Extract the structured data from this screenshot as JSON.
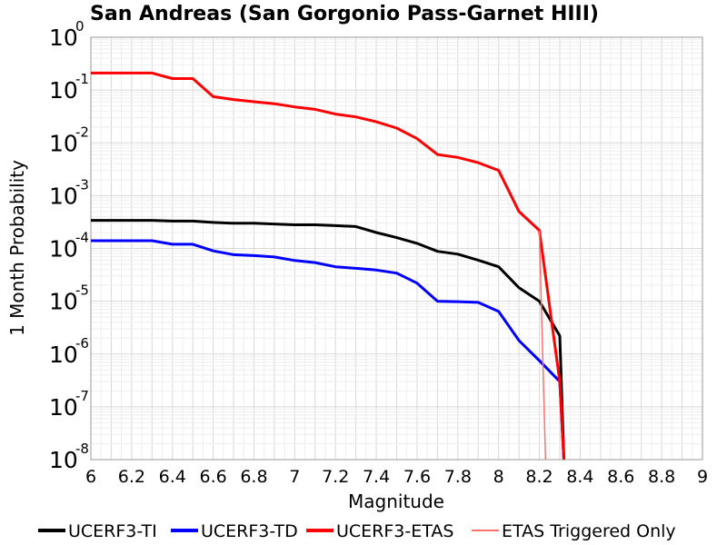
{
  "chart_data": {
    "type": "line",
    "title": "San Andreas (San Gorgonio Pass-Garnet HIII)",
    "xlabel": "Magnitude",
    "ylabel": "1 Month Probability",
    "xlim": [
      6,
      9
    ],
    "ylim": [
      1e-08,
      1
    ],
    "yscale": "log",
    "grid": true,
    "legend_position": "bottom",
    "x_ticks": [
      "6",
      "6.2",
      "6.4",
      "6.6",
      "6.8",
      "7",
      "7.2",
      "7.4",
      "7.6",
      "7.8",
      "8",
      "8.2",
      "8.4",
      "8.6",
      "8.8",
      "9"
    ],
    "y_ticks": [
      {
        "base": "10",
        "exp": "0"
      },
      {
        "base": "10",
        "exp": "-1"
      },
      {
        "base": "10",
        "exp": "-2"
      },
      {
        "base": "10",
        "exp": "-3"
      },
      {
        "base": "10",
        "exp": "-4"
      },
      {
        "base": "10",
        "exp": "-5"
      },
      {
        "base": "10",
        "exp": "-6"
      },
      {
        "base": "10",
        "exp": "-7"
      },
      {
        "base": "10",
        "exp": "-8"
      }
    ],
    "series": [
      {
        "name": "UCERF3-TI",
        "color": "#000000",
        "line_width": 3,
        "points": [
          [
            6.0,
            0.00034
          ],
          [
            6.1,
            0.00034
          ],
          [
            6.2,
            0.00034
          ],
          [
            6.3,
            0.00034
          ],
          [
            6.4,
            0.00033
          ],
          [
            6.5,
            0.00033
          ],
          [
            6.6,
            0.00031
          ],
          [
            6.7,
            0.0003
          ],
          [
            6.8,
            0.0003
          ],
          [
            6.9,
            0.00029
          ],
          [
            7.0,
            0.00028
          ],
          [
            7.1,
            0.00028
          ],
          [
            7.2,
            0.00027
          ],
          [
            7.3,
            0.00026
          ],
          [
            7.4,
            0.0002
          ],
          [
            7.5,
            0.00016
          ],
          [
            7.6,
            0.000125
          ],
          [
            7.7,
            8.8e-05
          ],
          [
            7.8,
            7.8e-05
          ],
          [
            7.9,
            6e-05
          ],
          [
            8.0,
            4.5e-05
          ],
          [
            8.1,
            1.8e-05
          ],
          [
            8.2,
            1e-05
          ],
          [
            8.3,
            2.2e-06
          ],
          [
            8.32,
            1e-08
          ]
        ]
      },
      {
        "name": "UCERF3-TD",
        "color": "#0000ff",
        "line_width": 3,
        "points": [
          [
            6.0,
            0.00014
          ],
          [
            6.1,
            0.00014
          ],
          [
            6.2,
            0.00014
          ],
          [
            6.3,
            0.00014
          ],
          [
            6.4,
            0.00012
          ],
          [
            6.5,
            0.00012
          ],
          [
            6.6,
            9e-05
          ],
          [
            6.7,
            7.6e-05
          ],
          [
            6.8,
            7.3e-05
          ],
          [
            6.9,
            6.9e-05
          ],
          [
            7.0,
            5.9e-05
          ],
          [
            7.1,
            5.4e-05
          ],
          [
            7.2,
            4.5e-05
          ],
          [
            7.3,
            4.2e-05
          ],
          [
            7.4,
            3.9e-05
          ],
          [
            7.5,
            3.4e-05
          ],
          [
            7.6,
            2.2e-05
          ],
          [
            7.7,
            1e-05
          ],
          [
            7.8,
            9.8e-06
          ],
          [
            7.9,
            9.5e-06
          ],
          [
            8.0,
            6.4e-06
          ],
          [
            8.1,
            1.8e-06
          ],
          [
            8.2,
            7.5e-07
          ],
          [
            8.3,
            3e-07
          ],
          [
            8.32,
            1e-08
          ]
        ]
      },
      {
        "name": "UCERF3-ETAS",
        "color": "#ff0000",
        "line_width": 3,
        "points": [
          [
            6.0,
            0.21
          ],
          [
            6.1,
            0.21
          ],
          [
            6.2,
            0.21
          ],
          [
            6.3,
            0.21
          ],
          [
            6.4,
            0.165
          ],
          [
            6.5,
            0.165
          ],
          [
            6.6,
            0.075
          ],
          [
            6.7,
            0.066
          ],
          [
            6.8,
            0.06
          ],
          [
            6.9,
            0.055
          ],
          [
            7.0,
            0.048
          ],
          [
            7.1,
            0.043
          ],
          [
            7.2,
            0.035
          ],
          [
            7.3,
            0.031
          ],
          [
            7.4,
            0.025
          ],
          [
            7.5,
            0.019
          ],
          [
            7.6,
            0.012
          ],
          [
            7.7,
            0.006
          ],
          [
            7.8,
            0.0053
          ],
          [
            7.9,
            0.0042
          ],
          [
            8.0,
            0.003
          ],
          [
            8.1,
            0.0005
          ],
          [
            8.2,
            0.00022
          ],
          [
            8.3,
            3e-07
          ],
          [
            8.32,
            1e-08
          ]
        ]
      },
      {
        "name": "ETAS Triggered Only",
        "color": "#ff7070",
        "line_width": 1.5,
        "points": [
          [
            8.2,
            0.00022
          ],
          [
            8.23,
            1e-08
          ]
        ]
      }
    ]
  }
}
